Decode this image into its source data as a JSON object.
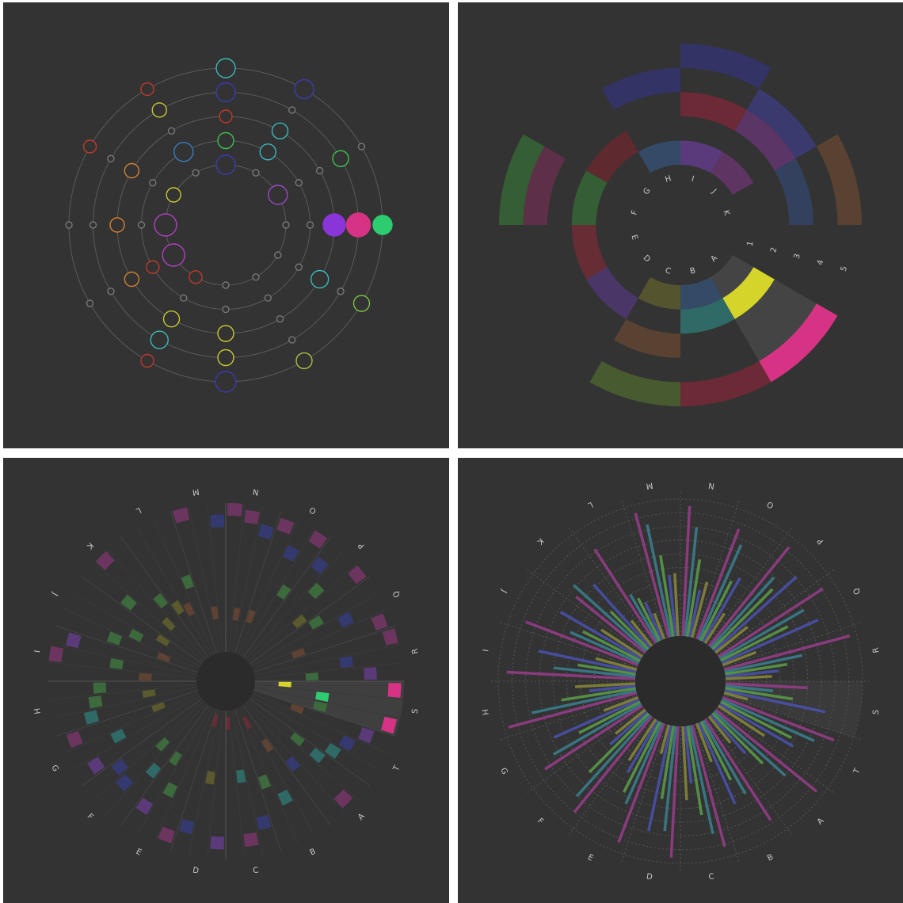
{
  "chart_data": [
    {
      "type": "ring-scatter",
      "angles": [
        0,
        30,
        60,
        90,
        120,
        150,
        180,
        210,
        240,
        270,
        300,
        330
      ],
      "rings": [
        1,
        2,
        3,
        4,
        5
      ],
      "rlim": [
        1,
        5
      ],
      "sizes": [
        [
          12,
          10,
          8,
          12,
          12
        ],
        [
          4,
          10,
          10,
          4,
          12
        ],
        [
          12,
          4,
          4,
          10,
          4
        ],
        [
          4,
          4,
          14,
          15,
          12
        ],
        [
          4,
          4,
          11,
          4,
          10
        ],
        [
          4,
          4,
          4,
          4,
          10
        ],
        [
          4,
          4,
          10,
          10,
          13
        ],
        [
          8,
          4,
          10,
          11,
          8
        ],
        [
          14,
          8,
          9,
          4,
          4
        ],
        [
          14,
          4,
          9,
          4,
          4
        ],
        [
          9,
          4,
          9,
          4,
          8
        ],
        [
          4,
          12,
          4,
          9,
          8
        ]
      ],
      "colors": [
        [
          "#3b3bb0",
          "#3fc04f",
          "#c0392b",
          "#3b3bb0",
          "#3bb8b8"
        ],
        [
          "#777777",
          "#3bb8b8",
          "#3bb8b8",
          "#777777",
          "#3b3bb0"
        ],
        [
          "#9b45c8",
          "#777777",
          "#777777",
          "#3fc04f",
          "#777777"
        ],
        [
          "#777777",
          "#777777",
          "#8a35d8",
          "#d63384",
          "#2ecc71"
        ],
        [
          "#777777",
          "#777777",
          "#3bb8b8",
          "#777777",
          "#7cc040"
        ],
        [
          "#777777",
          "#777777",
          "#777777",
          "#777777",
          "#a8c040"
        ],
        [
          "#777777",
          "#777777",
          "#c8c832",
          "#c8c832",
          "#3b3bb0"
        ],
        [
          "#c0392b",
          "#777777",
          "#c8c832",
          "#3bb8b8",
          "#c0392b"
        ],
        [
          "#b040c0",
          "#c0392b",
          "#d08030",
          "#777777",
          "#777777"
        ],
        [
          "#b040c0",
          "#777777",
          "#d08030",
          "#777777",
          "#777777"
        ],
        [
          "#c8c832",
          "#777777",
          "#d08030",
          "#777777",
          "#c0392b"
        ],
        [
          "#777777",
          "#3b7bc0",
          "#777777",
          "#c8c832",
          "#c0392b"
        ]
      ],
      "filled": [
        [
          false,
          false,
          false,
          false,
          false
        ],
        [
          false,
          false,
          false,
          false,
          false
        ],
        [
          false,
          false,
          false,
          false,
          false
        ],
        [
          false,
          false,
          true,
          true,
          true
        ],
        [
          false,
          false,
          false,
          false,
          false
        ],
        [
          false,
          false,
          false,
          false,
          false
        ],
        [
          false,
          false,
          false,
          false,
          false
        ],
        [
          false,
          false,
          false,
          false,
          false
        ],
        [
          false,
          false,
          false,
          false,
          false
        ],
        [
          false,
          false,
          false,
          false,
          false
        ],
        [
          false,
          false,
          false,
          false,
          false
        ],
        [
          false,
          false,
          false,
          false,
          false
        ]
      ]
    },
    {
      "type": "sunburst",
      "categories": [
        "A",
        "B",
        "C",
        "D",
        "E",
        "F",
        "G",
        "H",
        "I",
        "J",
        "K",
        null
      ],
      "start_angle": 120,
      "rticks": [
        1,
        2,
        3,
        4,
        5
      ],
      "rlim": [
        0,
        5
      ],
      "highlight": "A",
      "colors": [
        [
          "#444444",
          "#d4d42a",
          null,
          null,
          "#d63384"
        ],
        [
          "#344a66",
          "#2f6a66",
          null,
          null,
          "#6b2a35"
        ],
        [
          "#54542f",
          null,
          "#5a4232",
          null,
          "#475a30"
        ],
        [
          null,
          "#4a3768",
          null,
          null,
          null
        ],
        [
          null,
          "#662d35",
          null,
          null,
          null
        ],
        [
          null,
          "#355e35",
          null,
          "#5e3048",
          "#355e35"
        ],
        [
          null,
          "#5e2a30",
          null,
          null,
          null
        ],
        [
          "#344a66",
          null,
          null,
          "#333366",
          null
        ],
        [
          "#5a3a7a",
          null,
          "#6b2a35",
          null,
          "#333366"
        ],
        [
          "#5e3462",
          null,
          "#5a3566",
          "#3a3a6e",
          null
        ],
        [
          null,
          null,
          "#33415e",
          null,
          "#5a4232"
        ],
        [
          null,
          null,
          null,
          null,
          null
        ]
      ]
    },
    {
      "type": "radial-heatmap",
      "categories": [
        "A",
        "B",
        "C",
        "D",
        "E",
        "F",
        "G",
        "H",
        "I",
        "J",
        "K",
        "L",
        "M",
        "N",
        "O",
        "P",
        "Q",
        "R",
        "S",
        "T"
      ],
      "start_angle": 126,
      "rlim": [
        0,
        10
      ],
      "highlight": "S",
      "cells": [
        [
          [
            1,
            9.6,
            "#6b3560"
          ],
          [
            0,
            6.2,
            "#2f6a66"
          ],
          [
            2,
            5.4,
            "#343a70"
          ],
          [
            0,
            4.4,
            "#3d6a3d"
          ]
        ],
        [
          [
            2,
            5.5,
            "#3d6a3d"
          ],
          [
            1,
            7.1,
            "#2f6a66"
          ],
          [
            0,
            3.3,
            "#5e4232"
          ],
          [
            1,
            1.2,
            "#6b2a35"
          ]
        ],
        [
          [
            1,
            9.2,
            "#6b3560"
          ],
          [
            0,
            8.2,
            "#343a70"
          ],
          [
            2,
            0.9,
            "#6b2a35"
          ],
          [
            1,
            4.7,
            "#2f6a66"
          ]
        ],
        [
          [
            0,
            9.3,
            "#5a3a78"
          ],
          [
            2,
            8.5,
            "#343a70"
          ],
          [
            1,
            4.8,
            "#5a5a2e"
          ],
          [
            2,
            0.8,
            "#6b2a35"
          ]
        ],
        [
          [
            0,
            9.5,
            "#6b3560"
          ],
          [
            2,
            8.4,
            "#5a3a78"
          ],
          [
            1,
            6.5,
            "#3d6a3d"
          ],
          [
            2,
            4.4,
            "#3d6a3d"
          ]
        ],
        [
          [
            1,
            8.0,
            "#343a70"
          ],
          [
            2,
            7.5,
            "#343a70"
          ],
          [
            0,
            6.0,
            "#2f6a66"
          ],
          [
            1,
            4.2,
            "#3d6a3d"
          ]
        ],
        [
          [
            0,
            8.8,
            "#5a3a78"
          ],
          [
            2,
            9.3,
            "#6b3560"
          ],
          [
            1,
            6.4,
            "#2f6a66"
          ],
          [
            2,
            3.0,
            "#5a5a2e"
          ]
        ],
        [
          [
            1,
            7.2,
            "#3d6a3d"
          ],
          [
            2,
            6.8,
            "#3d6a3d"
          ],
          [
            0,
            7.7,
            "#2f6a66"
          ],
          [
            1,
            3.4,
            "#5a5a2e"
          ]
        ],
        [
          [
            1,
            10.0,
            "#6b3560"
          ],
          [
            2,
            9.0,
            "#5a3a78"
          ],
          [
            0,
            3.6,
            "#5e4232"
          ],
          [
            1,
            5.7,
            "#3d6a3d"
          ]
        ],
        [
          [
            0,
            6.3,
            "#3d6a3d"
          ],
          [
            1,
            5.0,
            "#3d6a3d"
          ],
          [
            2,
            3.2,
            "#5a5a2e"
          ],
          [
            0,
            2.6,
            "#5e4232"
          ]
        ],
        [
          [
            1,
            9.9,
            "#6b3560"
          ],
          [
            0,
            6.7,
            "#3d6a3d"
          ],
          [
            2,
            5.2,
            "#3d6a3d"
          ],
          [
            1,
            3.6,
            "#5a5a2e"
          ]
        ],
        [
          [
            0,
            4.1,
            "#5a5a2e"
          ],
          [
            1,
            3.6,
            "#5e4232"
          ],
          [
            2,
            5.4,
            "#3d6a3d"
          ]
        ],
        [
          [
            0,
            10.0,
            "#6b3560"
          ],
          [
            2,
            9.2,
            "#343a70"
          ],
          [
            1,
            2.8,
            "#5e4232"
          ]
        ],
        [
          [
            0,
            10.0,
            "#6b3560"
          ],
          [
            1,
            9.6,
            "#6b3560"
          ],
          [
            2,
            8.8,
            "#343a70"
          ],
          [
            1,
            2.7,
            "#5e4232"
          ]
        ],
        [
          [
            0,
            9.6,
            "#6b3560"
          ],
          [
            2,
            9.8,
            "#6b3560"
          ],
          [
            1,
            8.0,
            "#343a70"
          ],
          [
            2,
            5.4,
            "#3d6a3d"
          ],
          [
            0,
            2.8,
            "#5e4232"
          ]
        ],
        [
          [
            2,
            9.8,
            "#6b3560"
          ],
          [
            0,
            8.4,
            "#343a70"
          ],
          [
            1,
            6.9,
            "#3d6a3d"
          ],
          [
            2,
            4.6,
            "#5a5a2e"
          ]
        ],
        [
          [
            2,
            9.5,
            "#6b3560"
          ],
          [
            1,
            7.4,
            "#343a70"
          ],
          [
            0,
            5.5,
            "#3d6a3d"
          ],
          [
            2,
            3.4,
            "#5e4232"
          ]
        ],
        [
          [
            0,
            9.9,
            "#6b3560"
          ],
          [
            1,
            6.5,
            "#343a70"
          ],
          [
            2,
            8.1,
            "#5a3a78"
          ],
          [
            2,
            4.0,
            "#3d6a3d"
          ]
        ],
        [
          [
            0,
            9.8,
            "#d63384"
          ],
          [
            2,
            9.8,
            "#d63384"
          ],
          [
            1,
            4.8,
            "#2ecc71"
          ],
          [
            0,
            2.1,
            "#d4d42a"
          ],
          [
            2,
            4.8,
            "#3d6a3d"
          ]
        ],
        [
          [
            0,
            8.5,
            "#5a3a78"
          ],
          [
            2,
            6.9,
            "#2f6a66"
          ],
          [
            1,
            7.5,
            "#343a70"
          ],
          [
            0,
            3.3,
            "#5e4232"
          ]
        ]
      ]
    },
    {
      "type": "radial-bar",
      "categories": [
        "A",
        "B",
        "C",
        "D",
        "E",
        "F",
        "G",
        "H",
        "I",
        "J",
        "K",
        "L",
        "M",
        "N",
        "O",
        "P",
        "Q",
        "R",
        "S",
        "T"
      ],
      "start_angle": 126,
      "rlim": [
        0,
        10
      ],
      "rticks": [
        1,
        2,
        3,
        4,
        5,
        6,
        7,
        8,
        9,
        10
      ],
      "grid": true,
      "highlight": "S",
      "series": [
        {
          "color": "#9a3d8c",
          "values": [
            9.5,
            8.8,
            9.2,
            9.6,
            9.3,
            9.0,
            8.5,
            9.7,
            9.4,
            8.8,
            6.5,
            8.2,
            9.4,
            9.5,
            8.6,
            9.3,
            9.1,
            9.5,
            6.0,
            8.7
          ]
        },
        {
          "color": "#3a8090",
          "values": [
            7.0,
            6.2,
            8.1,
            7.7,
            6.5,
            8.0,
            7.4,
            7.8,
            6.0,
            5.5,
            7.2,
            4.0,
            8.4,
            8.0,
            7.6,
            6.9,
            7.1,
            5.8,
            3.5,
            7.4
          ]
        },
        {
          "color": "#5aa048",
          "values": [
            5.2,
            4.8,
            6.6,
            5.4,
            5.8,
            6.1,
            5.0,
            5.5,
            4.3,
            4.7,
            3.9,
            3.5,
            6.0,
            5.7,
            4.9,
            6.2,
            5.5,
            4.6,
            5.0,
            5.8
          ]
        },
        {
          "color": "#4a52b0",
          "values": [
            3.8,
            6.5,
            4.2,
            7.9,
            4.4,
            3.6,
            6.8,
            3.4,
            7.3,
            6.8,
            6.2,
            3.0,
            4.5,
            3.5,
            5.4,
            8.1,
            7.7,
            3.9,
            7.5,
            6.2
          ]
        },
        {
          "color": "#8a8a3a",
          "values": [
            2.5,
            3.0,
            5.4,
            2.2,
            3.6,
            2.8,
            2.7,
            4.4,
            3.1,
            3.6,
            2.4,
            2.0,
            4.6,
            4.2,
            2.6,
            3.0,
            2.6,
            3.4,
            1.8,
            4.0
          ]
        }
      ]
    }
  ]
}
